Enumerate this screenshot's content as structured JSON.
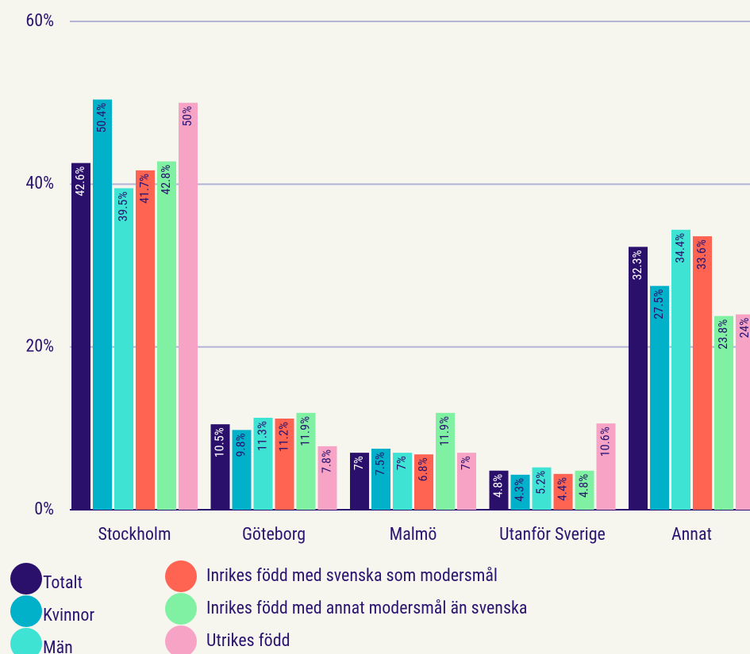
{
  "chart_data": {
    "type": "bar",
    "categories": [
      "Stockholm",
      "Göteborg",
      "Malmö",
      "Utanför Sverige",
      "Annat"
    ],
    "series": [
      {
        "name": "Totalt",
        "color": "#2a0f6b",
        "values": [
          42.6,
          10.5,
          7,
          4.8,
          32.3
        ],
        "value_labels": [
          "42.6%",
          "10.5%",
          "7%",
          "4.8%",
          "32.3%"
        ]
      },
      {
        "name": "Kvinnor",
        "color": "#00b1c9",
        "values": [
          50.4,
          9.8,
          7.5,
          4.3,
          27.5
        ],
        "value_labels": [
          "50.4%",
          "9.8%",
          "7.5%",
          "4.3%",
          "27.5%"
        ]
      },
      {
        "name": "Män",
        "color": "#3fe3d3",
        "values": [
          39.5,
          11.3,
          7,
          5.2,
          34.4
        ],
        "value_labels": [
          "39.5%",
          "11.3%",
          "7%",
          "5.2%",
          "34.4%"
        ]
      },
      {
        "name": "Inrikes född med svenska som modersmål",
        "color": "#ff6352",
        "values": [
          41.7,
          11.2,
          6.8,
          4.4,
          33.6
        ],
        "value_labels": [
          "41.7%",
          "11.2%",
          "6.8%",
          "4.4%",
          "33.6%"
        ]
      },
      {
        "name": "Inrikes född med annat modersmål än svenska",
        "color": "#80f0a2",
        "values": [
          42.8,
          11.9,
          11.9,
          4.8,
          23.8
        ],
        "value_labels": [
          "42.8%",
          "11.9%",
          "11.9%",
          "4.8%",
          "23.8%"
        ]
      },
      {
        "name": "Utrikes född",
        "color": "#f7a3c6",
        "values": [
          50,
          7.8,
          7,
          10.6,
          24
        ],
        "value_labels": [
          "50%",
          "7.8%",
          "7%",
          "10.6%",
          "24%"
        ]
      }
    ],
    "ylim": [
      0,
      60
    ],
    "yticks": [
      {
        "value": 0,
        "label": "0%"
      },
      {
        "value": 20,
        "label": "20%"
      },
      {
        "value": 40,
        "label": "40%"
      },
      {
        "value": 60,
        "label": "60%"
      }
    ],
    "grid": true
  }
}
